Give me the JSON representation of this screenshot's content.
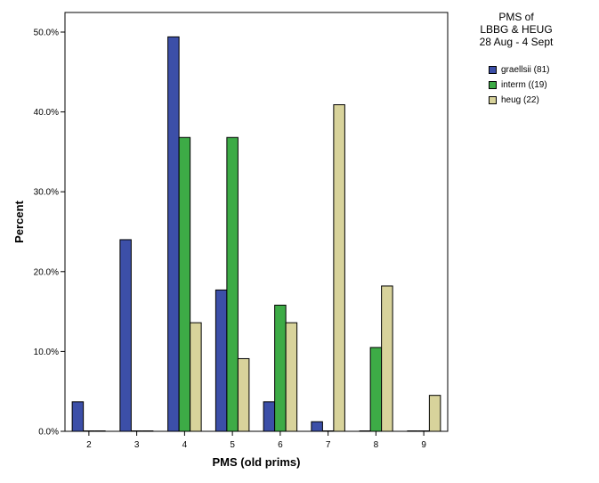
{
  "chart_data": {
    "type": "bar",
    "title_lines": [
      "PMS of",
      "LBBG & HEUG",
      "28 Aug - 4 Sept"
    ],
    "xlabel": "PMS (old prims)",
    "ylabel": "Percent",
    "categories": [
      "2",
      "3",
      "4",
      "5",
      "6",
      "7",
      "8",
      "9"
    ],
    "y_ticks": [
      "0.0%",
      "10.0%",
      "20.0%",
      "30.0%",
      "40.0%",
      "50.0%"
    ],
    "ylim": [
      0,
      50
    ],
    "grid": false,
    "legend_position": "top-right",
    "series": [
      {
        "name": "graellsii (81)",
        "color": "#3c4fa8",
        "values": [
          3.7,
          24.0,
          49.4,
          17.7,
          3.7,
          1.2,
          0.0,
          0.0
        ]
      },
      {
        "name": "interm ((19)",
        "color": "#3dab46",
        "values": [
          0.0,
          0.0,
          36.8,
          36.8,
          15.8,
          0.0,
          10.5,
          0.0
        ]
      },
      {
        "name": "heug (22)",
        "color": "#d8d39b",
        "values": [
          0.0,
          0.0,
          13.6,
          9.1,
          13.6,
          40.9,
          18.2,
          4.5
        ]
      }
    ]
  }
}
